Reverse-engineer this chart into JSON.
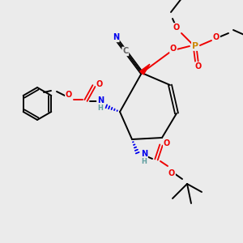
{
  "bg_color": "#ebebeb",
  "colors": {
    "C": "#606060",
    "N": "#0000ee",
    "O": "#ee0000",
    "P": "#cc8800",
    "H": "#5f9ea0",
    "bond": "#000000"
  }
}
